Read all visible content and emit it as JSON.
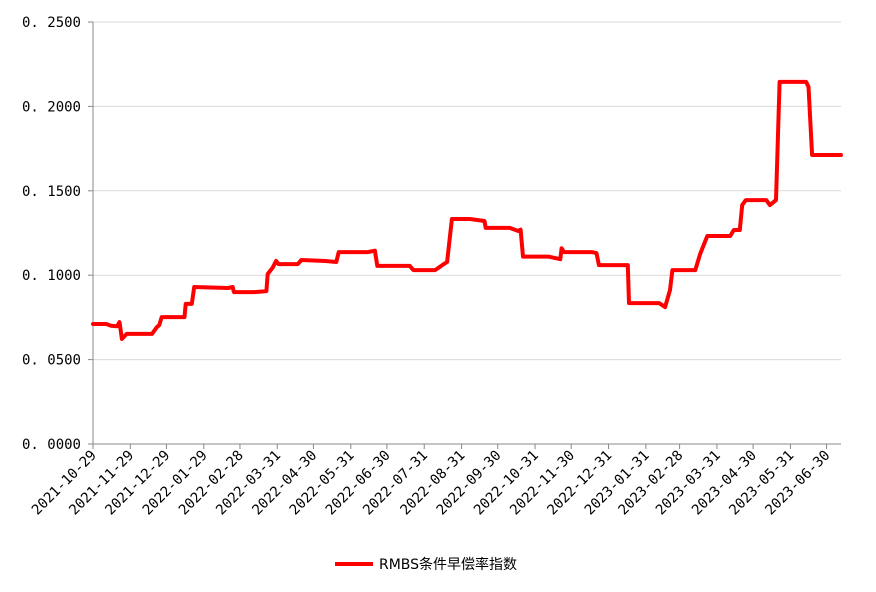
{
  "chart_data": {
    "type": "line",
    "title": "",
    "xlabel": "",
    "ylabel": "",
    "ylim": [
      0,
      0.25
    ],
    "yticks": [
      "0.0000",
      "0.0500",
      "0.1000",
      "0.1500",
      "0.2000",
      "0.2500"
    ],
    "xticks": [
      "2021-10-29",
      "2021-11-29",
      "2021-12-29",
      "2022-01-29",
      "2022-02-28",
      "2022-03-31",
      "2022-04-30",
      "2022-05-31",
      "2022-06-30",
      "2022-07-31",
      "2022-08-31",
      "2022-09-30",
      "2022-10-31",
      "2022-11-30",
      "2022-12-31",
      "2023-01-31",
      "2023-02-28",
      "2023-03-31",
      "2023-04-30",
      "2023-05-31",
      "2023-06-30"
    ],
    "xlim": [
      "2021-10-29",
      "2023-07-12"
    ],
    "grid": "horizontal",
    "legend_position": "bottom",
    "series": [
      {
        "name": "RMBS条件早偿率指数",
        "color": "#ff0000",
        "points": [
          [
            "2021-10-29",
            0.0711
          ],
          [
            "2021-11-09",
            0.0711
          ],
          [
            "2021-11-13",
            0.07
          ],
          [
            "2021-11-18",
            0.0697
          ],
          [
            "2021-11-20",
            0.0722
          ],
          [
            "2021-11-22",
            0.0622
          ],
          [
            "2021-11-26",
            0.0652
          ],
          [
            "2021-12-17",
            0.0652
          ],
          [
            "2021-12-21",
            0.0692
          ],
          [
            "2021-12-23",
            0.0704
          ],
          [
            "2021-12-25",
            0.0752
          ],
          [
            "2022-01-13",
            0.0752
          ],
          [
            "2022-01-14",
            0.083
          ],
          [
            "2022-01-19",
            0.083
          ],
          [
            "2022-01-21",
            0.093
          ],
          [
            "2022-02-18",
            0.0924
          ],
          [
            "2022-02-22",
            0.093
          ],
          [
            "2022-02-23",
            0.09
          ],
          [
            "2022-03-12",
            0.09
          ],
          [
            "2022-03-22",
            0.0906
          ],
          [
            "2022-03-23",
            0.1007
          ],
          [
            "2022-03-27",
            0.1043
          ],
          [
            "2022-03-30",
            0.1085
          ],
          [
            "2022-04-01",
            0.1066
          ],
          [
            "2022-04-07",
            0.1066
          ],
          [
            "2022-04-17",
            0.1066
          ],
          [
            "2022-04-20",
            0.109
          ],
          [
            "2022-05-10",
            0.1084
          ],
          [
            "2022-05-19",
            0.1078
          ],
          [
            "2022-05-21",
            0.1137
          ],
          [
            "2022-06-14",
            0.1137
          ],
          [
            "2022-06-20",
            0.1145
          ],
          [
            "2022-06-22",
            0.1055
          ],
          [
            "2022-07-19",
            0.1055
          ],
          [
            "2022-07-22",
            0.103
          ],
          [
            "2022-08-09",
            0.103
          ],
          [
            "2022-08-15",
            0.106
          ],
          [
            "2022-08-19",
            0.1078
          ],
          [
            "2022-08-23",
            0.1333
          ],
          [
            "2022-09-07",
            0.1333
          ],
          [
            "2022-09-19",
            0.1321
          ],
          [
            "2022-09-20",
            0.128
          ],
          [
            "2022-10-10",
            0.128
          ],
          [
            "2022-10-17",
            0.1262
          ],
          [
            "2022-10-19",
            0.127
          ],
          [
            "2022-10-21",
            0.111
          ],
          [
            "2022-11-11",
            0.111
          ],
          [
            "2022-11-21",
            0.1095
          ],
          [
            "2022-11-22",
            0.116
          ],
          [
            "2022-11-24",
            0.1137
          ],
          [
            "2022-12-17",
            0.1137
          ],
          [
            "2022-12-21",
            0.1131
          ],
          [
            "2022-12-23",
            0.106
          ],
          [
            "2023-01-16",
            0.106
          ],
          [
            "2023-01-17",
            0.0835
          ],
          [
            "2023-02-11",
            0.0835
          ],
          [
            "2023-02-16",
            0.0811
          ],
          [
            "2023-02-20",
            0.0912
          ],
          [
            "2023-02-22",
            0.103
          ],
          [
            "2023-03-13",
            0.103
          ],
          [
            "2023-03-17",
            0.1125
          ],
          [
            "2023-03-23",
            0.1232
          ],
          [
            "2023-04-11",
            0.1232
          ],
          [
            "2023-04-14",
            0.1268
          ],
          [
            "2023-04-19",
            0.1268
          ],
          [
            "2023-04-21",
            0.1415
          ],
          [
            "2023-04-24",
            0.1445
          ],
          [
            "2023-05-11",
            0.1445
          ],
          [
            "2023-05-14",
            0.1415
          ],
          [
            "2023-05-19",
            0.1445
          ],
          [
            "2023-05-22",
            0.2145
          ],
          [
            "2023-06-13",
            0.2145
          ],
          [
            "2023-06-15",
            0.2116
          ],
          [
            "2023-06-18",
            0.1712
          ],
          [
            "2023-07-12",
            0.1712
          ]
        ]
      }
    ]
  }
}
